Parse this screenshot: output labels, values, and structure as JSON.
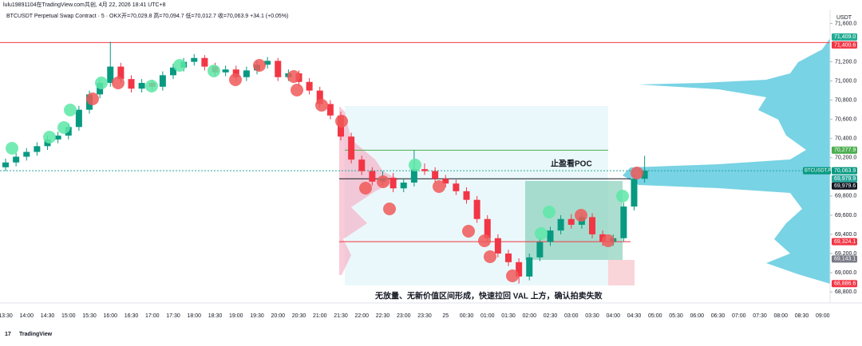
{
  "chart_data": {
    "type": "candlestick",
    "watermark": "lulu19891104在TradingView.com共创, 4月 22, 2026 18:41 UTC+8",
    "title": "BTCUSDT Perpetual Swap Contract · 5 · OKX",
    "ohlc_header": "开=70,029.8 高=70,094.7 低=70,012.7 收=70,063.9 +34.1 (+0.05%)",
    "currency": "USDT",
    "symbol_badge": "BTCUSDT.P",
    "annotations": [
      "止盈看POC",
      "无放量、无新价值区间形成，快速拉回 VAL 上方，确认拍卖失败"
    ],
    "brand": "TradingView",
    "up_color": "#089981",
    "down_color": "#f23645",
    "x_labels": [
      "13:30",
      "14:00",
      "14:30",
      "15:00",
      "15:30",
      "16:00",
      "16:30",
      "17:00",
      "17:30",
      "18:00",
      "18:30",
      "19:00",
      "19:30",
      "20:00",
      "20:30",
      "21:00",
      "21:30",
      "22:00",
      "22:30",
      "23:00",
      "23:30",
      "25",
      "00:30",
      "01:00",
      "01:30",
      "02:00",
      "02:30",
      "03:00",
      "03:30",
      "04:00",
      "04:30",
      "05:00",
      "05:30",
      "06:00",
      "06:30",
      "07:00",
      "07:30",
      "08:00",
      "08:30",
      "09:00"
    ],
    "open": [
      70100,
      70150,
      70210,
      70260,
      70320,
      70390,
      70430,
      70520,
      70700,
      70860,
      70980,
      71150,
      71020,
      70920,
      70980,
      70940,
      71060,
      71140,
      71200,
      71240,
      71150,
      71090,
      71120,
      71040,
      71110,
      71170,
      71210,
      71040,
      71080,
      70990,
      70900,
      70760,
      70640,
      70420,
      70180,
      70060,
      69950,
      69990,
      69880,
      69940,
      70080,
      70060,
      69980,
      69930,
      69850,
      69760,
      69560,
      69360,
      69200,
      69110,
      68960,
      69160,
      69320,
      69440,
      69560,
      69500,
      69580,
      69400,
      69320,
      69360,
      69690,
      69980
    ],
    "high": [
      70190,
      70250,
      70300,
      70360,
      70430,
      70470,
      70560,
      70740,
      70900,
      71020,
      71409,
      71190,
      71060,
      71020,
      71010,
      71100,
      71180,
      71240,
      71280,
      71270,
      71190,
      71160,
      71160,
      71150,
      71210,
      71250,
      71240,
      71120,
      71110,
      71030,
      70940,
      70800,
      70680,
      70460,
      70220,
      70100,
      70060,
      70040,
      69980,
      70277.9,
      70140,
      70100,
      70020,
      69970,
      69890,
      69800,
      69600,
      69400,
      69240,
      69150,
      69200,
      69360,
      69480,
      69600,
      69610,
      69620,
      69620,
      69440,
      69400,
      69730,
      70020,
      70220
    ],
    "low": [
      70060,
      70110,
      70170,
      70220,
      70280,
      70350,
      70390,
      70480,
      70660,
      70820,
      70940,
      70980,
      70880,
      70880,
      70900,
      70900,
      71020,
      71100,
      71160,
      71110,
      71050,
      71050,
      71000,
      71000,
      71070,
      71130,
      71000,
      71000,
      70950,
      70860,
      70720,
      70600,
      70380,
      70140,
      70020,
      69910,
      69910,
      69840,
      69840,
      69900,
      70020,
      69940,
      69890,
      69810,
      69720,
      69520,
      69320,
      69160,
      69070,
      68886.6,
      68920,
      69120,
      69280,
      69400,
      69460,
      69460,
      69360,
      69280,
      69280,
      69320,
      69650,
      69940
    ],
    "close": [
      70150,
      70210,
      70260,
      70320,
      70390,
      70430,
      70520,
      70700,
      70860,
      70980,
      71150,
      71020,
      70920,
      70980,
      70940,
      71060,
      71140,
      71200,
      71240,
      71150,
      71090,
      71120,
      71040,
      71110,
      71170,
      71210,
      71040,
      71080,
      70990,
      70900,
      70760,
      70640,
      70420,
      70180,
      70060,
      69950,
      69990,
      69880,
      69940,
      70080,
      70060,
      69980,
      69930,
      69850,
      69760,
      69560,
      69360,
      69200,
      69110,
      68960,
      69160,
      69320,
      69440,
      69560,
      69500,
      69580,
      69400,
      69320,
      69360,
      69690,
      69980,
      70063.9
    ],
    "ylim": [
      68726,
      71745
    ],
    "yticks": [
      {
        "value": 68800,
        "label": "68,800.0"
      },
      {
        "value": 69000,
        "label": "69,000.0"
      },
      {
        "value": 69200,
        "label": "69,200.0"
      },
      {
        "value": 69400,
        "label": "69,400.0"
      },
      {
        "value": 69600,
        "label": "69,600.0"
      },
      {
        "value": 69800,
        "label": "69,800.0"
      },
      {
        "value": 70200,
        "label": "70,200.0"
      },
      {
        "value": 70400,
        "label": "70,400.0"
      },
      {
        "value": 70600,
        "label": "70,600.0"
      },
      {
        "value": 70800,
        "label": "70,800.0"
      },
      {
        "value": 71000,
        "label": "71,000.0"
      },
      {
        "value": 71200,
        "label": "71,200.0"
      },
      {
        "value": 71600,
        "label": "71,600.0"
      }
    ],
    "price_badges": [
      {
        "value": 71409.0,
        "label": "71,409.0",
        "color": "#22ab94"
      },
      {
        "value": 71400.6,
        "label": "71,400.6",
        "color": "#f23645"
      },
      {
        "value": 70277.9,
        "label": "70,277.9",
        "color": "#4caf50"
      },
      {
        "value": 70063.9,
        "label": "70,063.9",
        "color": "#089981"
      },
      {
        "value": 69979.9,
        "label": "69,979.9",
        "color": "#26a69a"
      },
      {
        "value": 69979.6,
        "label": "69,979.6",
        "color": "#131722"
      },
      {
        "value": 69324.1,
        "label": "69,324.1",
        "color": "#f23645"
      },
      {
        "value": 69143.1,
        "label": "69,143.1",
        "color": "#787b86"
      },
      {
        "value": 68886.6,
        "label": "68,886.6",
        "color": "#f23645"
      }
    ]
  }
}
